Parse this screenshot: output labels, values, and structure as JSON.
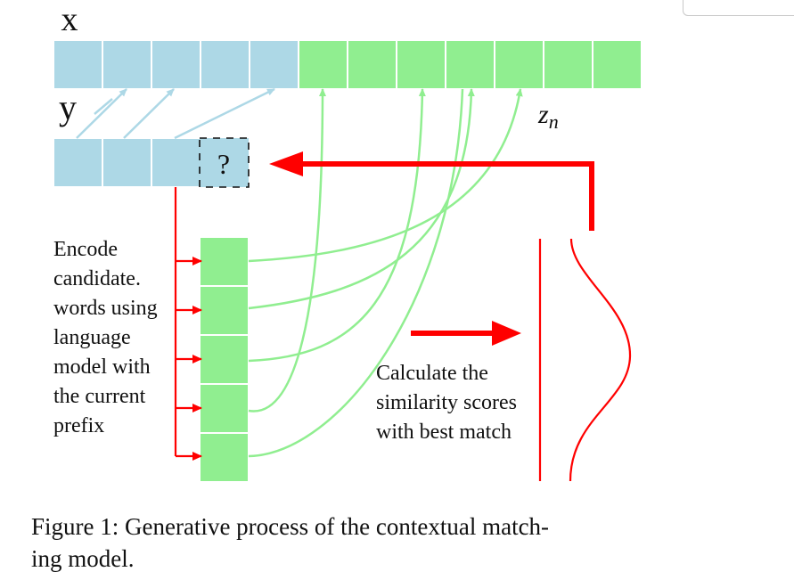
{
  "labels": {
    "x": "x",
    "y": "y",
    "zn": "zn",
    "zn_base": "z",
    "zn_sub": "n",
    "question_mark": "?"
  },
  "annotations": {
    "encode_lines": [
      "Encode",
      "candidate.",
      "words using",
      "language",
      "model with",
      "the current",
      "prefix"
    ],
    "similarity_lines": [
      "Calculate the",
      "similarity scores",
      "with best match"
    ]
  },
  "caption": {
    "text": "Figure 1: Generative process of the contextual match-ing model.",
    "line1": "Figure 1: Generative process of the contextual match-",
    "line2": "ing model."
  },
  "structure": {
    "x_blue_cells": 5,
    "x_green_cells": 7,
    "y_blue_cells": 3,
    "candidate_cells": 5
  },
  "colors": {
    "blue_cell": "#add8e6",
    "green_cell": "#90ee90",
    "red_arrow": "#ff0000",
    "connector_blue": "#add8e6",
    "connector_green": "#90ee90"
  }
}
